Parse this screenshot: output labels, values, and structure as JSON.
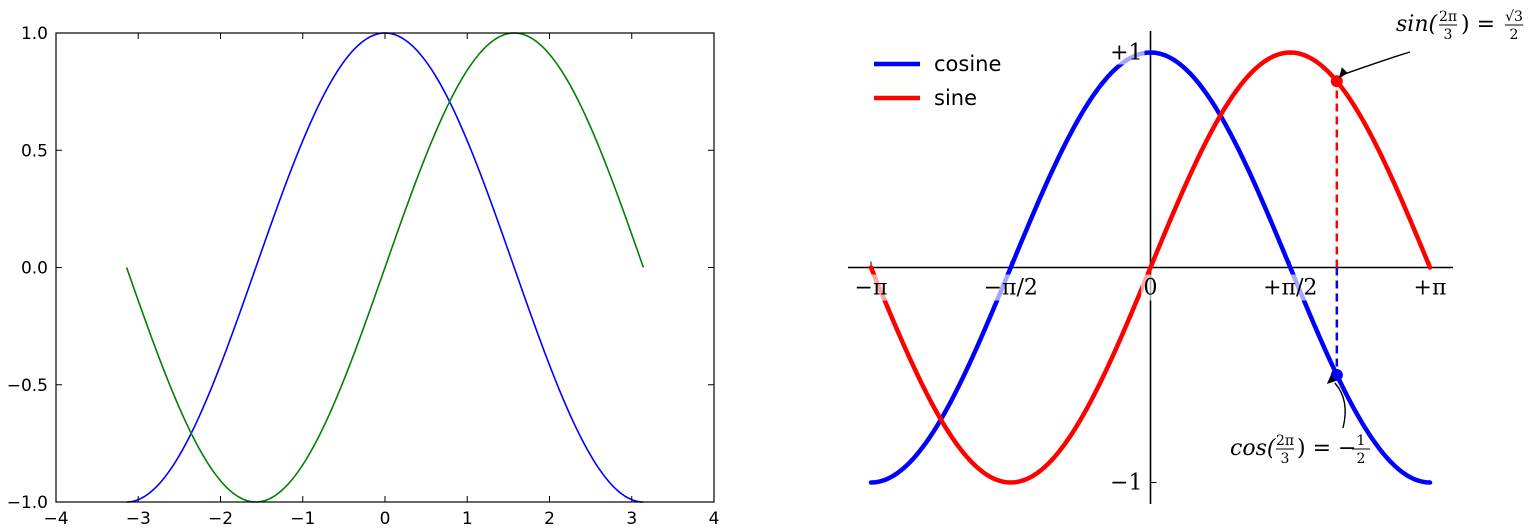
{
  "chart_data": [
    {
      "type": "line",
      "title": "",
      "xlabel": "",
      "ylabel": "",
      "xlim": [
        -4,
        4
      ],
      "ylim": [
        -1.0,
        1.0
      ],
      "x_range": [
        -3.14159,
        3.14159
      ],
      "x_ticks": [
        -4,
        -3,
        -2,
        -1,
        0,
        1,
        2,
        3,
        4
      ],
      "x_tick_labels": [
        "−4",
        "−3",
        "−2",
        "−1",
        "0",
        "1",
        "2",
        "3",
        "4"
      ],
      "y_ticks": [
        -1.0,
        -0.5,
        0.0,
        0.5,
        1.0
      ],
      "y_tick_labels": [
        "−1.0",
        "−0.5",
        "0.0",
        "0.5",
        "1.0"
      ],
      "grid": false,
      "series": [
        {
          "function": "cos",
          "color": "#0000ff"
        },
        {
          "function": "sin",
          "color": "#008000"
        }
      ]
    },
    {
      "type": "line",
      "title": "",
      "xlim": [
        -3.4,
        3.4
      ],
      "ylim": [
        -1.1,
        1.1
      ],
      "x_range": [
        -3.14159,
        3.14159
      ],
      "spines": "centered",
      "x_ticks": [
        -3.14159,
        -1.5708,
        0,
        1.5708,
        3.14159
      ],
      "x_tick_labels": [
        "−π",
        "−π/2",
        "0",
        "+π/2",
        "+π"
      ],
      "y_ticks": [
        -1,
        1
      ],
      "y_tick_labels": [
        "−1",
        "+1"
      ],
      "legend_position": "upper-left",
      "series": [
        {
          "name": "cosine",
          "function": "cos",
          "color": "#0000ff"
        },
        {
          "name": "sine",
          "function": "sin",
          "color": "#ff0000"
        }
      ],
      "marked_x": 2.0944,
      "annotations": [
        {
          "at": [
            2.0944,
            0.866
          ],
          "parts": [
            "sin(",
            "2π",
            "3",
            ") = ",
            "√3",
            "2"
          ]
        },
        {
          "at": [
            2.0944,
            -0.5
          ],
          "parts": [
            "cos(",
            "2π",
            "3",
            ") = −",
            "1",
            "2"
          ]
        }
      ]
    }
  ]
}
